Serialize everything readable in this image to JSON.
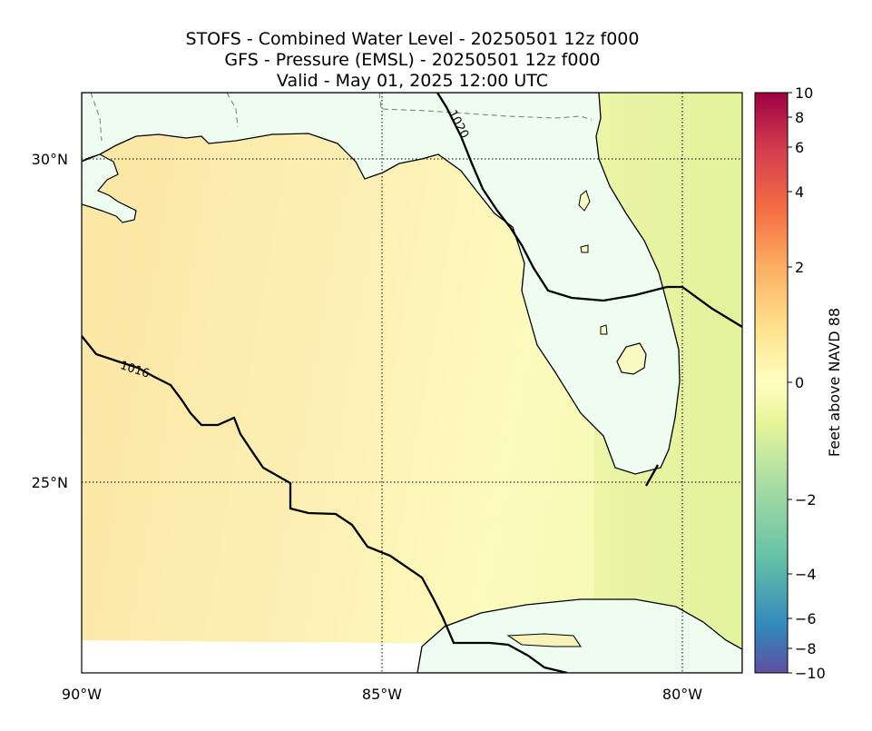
{
  "titles": {
    "line1": "STOFS - Combined Water Level - 20250501 12z f000",
    "line2": "GFS - Pressure (EMSL) - 20250501 12z f000",
    "line3": "Valid - May 01, 2025 12:00 UTC"
  },
  "map": {
    "lon_range": [
      -90,
      -79
    ],
    "lat_range": [
      22.1,
      31.05
    ],
    "grid_lons": [
      -85,
      -80
    ],
    "grid_lats": [
      25,
      30
    ],
    "lon_tick_labels": [
      {
        "lon": -90,
        "label": "90°W"
      },
      {
        "lon": -85,
        "label": "85°W"
      },
      {
        "lon": -80,
        "label": "80°W"
      }
    ],
    "lat_tick_labels": [
      {
        "lat": 30,
        "label": "30°N"
      },
      {
        "lat": 25,
        "label": "25°N"
      }
    ],
    "land_color": "#effdf1",
    "water_color": "#fae5a0",
    "isobar_labels": [
      {
        "text": "1020"
      },
      {
        "text": "1016"
      }
    ]
  },
  "colorbar": {
    "label": "Feet above NAVD 88",
    "ticks": [
      {
        "value": 10,
        "label": "10"
      },
      {
        "value": 8,
        "label": "8"
      },
      {
        "value": 6,
        "label": "6"
      },
      {
        "value": 4,
        "label": "4"
      },
      {
        "value": 2,
        "label": "2"
      },
      {
        "value": 0,
        "label": "0"
      },
      {
        "value": -2,
        "label": "−2"
      },
      {
        "value": -4,
        "label": "−4"
      },
      {
        "value": -6,
        "label": "−6"
      },
      {
        "value": -8,
        "label": "−8"
      },
      {
        "value": -10,
        "label": "−10"
      }
    ],
    "colors": [
      "#5e4fa2",
      "#3288bd",
      "#66c2a5",
      "#abdda4",
      "#e6f598",
      "#ffffbf",
      "#fee08b",
      "#fdae61",
      "#f46d43",
      "#d53e4f",
      "#9e0142"
    ]
  }
}
